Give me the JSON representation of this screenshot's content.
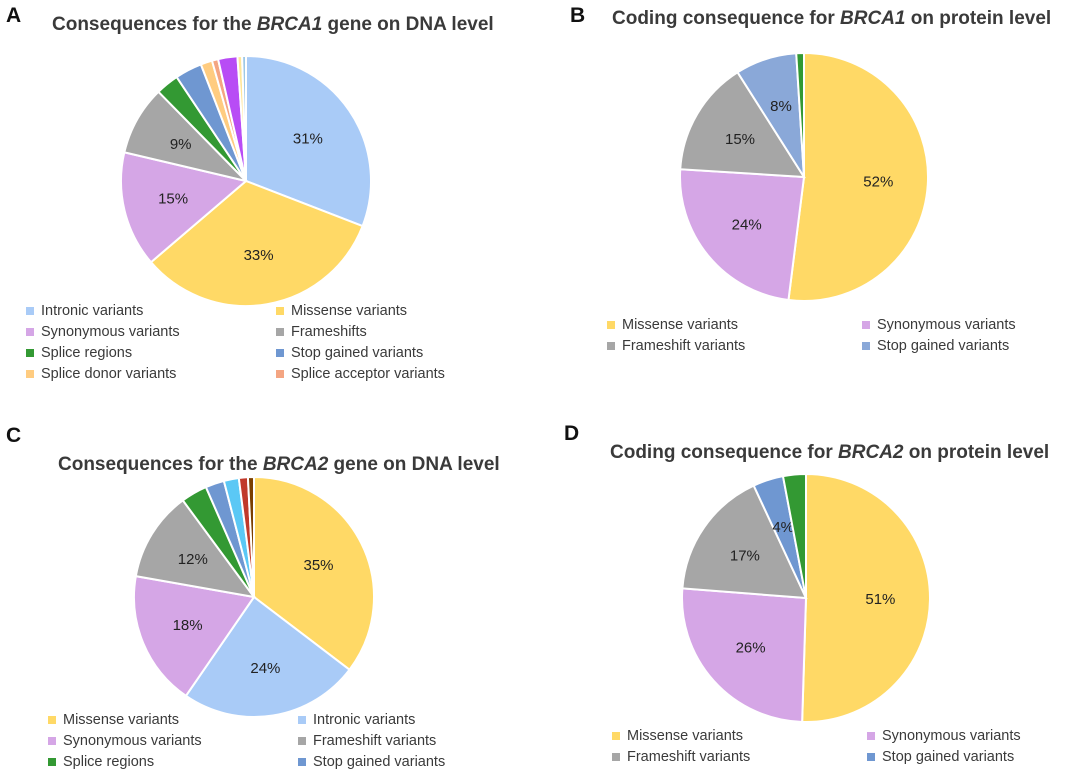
{
  "panels": [
    {
      "id": "a",
      "letter": "A",
      "title_before": "Consequences for the ",
      "title_gene": "BRCA1",
      "title_after": " gene on DNA level",
      "chart_data": {
        "type": "pie",
        "title": "Consequences for the BRCA1 gene on DNA level",
        "slices": [
          {
            "name": "Intronic variants",
            "value": 31,
            "label": "31%",
            "color": "#a9cbf7"
          },
          {
            "name": "Missense variants",
            "value": 33,
            "label": "33%",
            "color": "#ffd966"
          },
          {
            "name": "Synonymous variants",
            "value": 15,
            "label": "15%",
            "color": "#d5a6e6"
          },
          {
            "name": "Frameshifts",
            "value": 9,
            "label": "9%",
            "color": "#a6a6a6"
          },
          {
            "name": "Splice regions",
            "value": 3,
            "label": "",
            "color": "#339933"
          },
          {
            "name": "Stop gained variants",
            "value": 3.5,
            "label": "",
            "color": "#6f97d1"
          },
          {
            "name": "Splice donor variants",
            "value": 1.5,
            "label": "",
            "color": "#ffcc80"
          },
          {
            "name": "Splice acceptor variants",
            "value": 0.8,
            "label": "",
            "color": "#f4a582"
          },
          {
            "name": "",
            "value": 2.5,
            "label": "",
            "color": "#b84cf5"
          },
          {
            "name": "",
            "value": 0.6,
            "label": "",
            "color": "#ffe699"
          },
          {
            "name": "",
            "value": 0.5,
            "label": "",
            "color": "#9ec8e6"
          }
        ]
      },
      "legend": [
        {
          "label": "Intronic variants",
          "color": "#a9cbf7"
        },
        {
          "label": "Missense variants",
          "color": "#ffd966"
        },
        {
          "label": "Synonymous variants",
          "color": "#d5a6e6"
        },
        {
          "label": "Frameshifts",
          "color": "#a6a6a6"
        },
        {
          "label": "Splice regions",
          "color": "#339933"
        },
        {
          "label": "Stop gained variants",
          "color": "#6f97d1"
        },
        {
          "label": "Splice donor variants",
          "color": "#ffcc80"
        },
        {
          "label": "Splice acceptor variants",
          "color": "#f4a582"
        }
      ]
    },
    {
      "id": "b",
      "letter": "B",
      "title_before": "Coding consequence for ",
      "title_gene": "BRCA1",
      "title_after": " on protein level",
      "chart_data": {
        "type": "pie",
        "title": "Coding consequence for BRCA1 on protein level",
        "slices": [
          {
            "name": "Missense variants",
            "value": 52,
            "label": "52%",
            "color": "#ffd966"
          },
          {
            "name": "Synonymous variants",
            "value": 24,
            "label": "24%",
            "color": "#d5a6e6"
          },
          {
            "name": "Frameshift variants",
            "value": 15,
            "label": "15%",
            "color": "#a6a6a6"
          },
          {
            "name": "Stop gained variants",
            "value": 8,
            "label": "8%",
            "color": "#8aa8d8"
          },
          {
            "name": "",
            "value": 1,
            "label": "",
            "color": "#339933"
          }
        ]
      },
      "legend": [
        {
          "label": "Missense variants",
          "color": "#ffd966"
        },
        {
          "label": "Synonymous variants",
          "color": "#d5a6e6"
        },
        {
          "label": "Frameshift variants",
          "color": "#a6a6a6"
        },
        {
          "label": "Stop gained variants",
          "color": "#8aa8d8"
        }
      ]
    },
    {
      "id": "c",
      "letter": "C",
      "title_before": "Consequences for the ",
      "title_gene": "BRCA2",
      "title_after": " gene on DNA level",
      "chart_data": {
        "type": "pie",
        "title": "Consequences for the BRCA2 gene on DNA level",
        "slices": [
          {
            "name": "Missense variants",
            "value": 35,
            "label": "35%",
            "color": "#ffd966"
          },
          {
            "name": "Intronic variants",
            "value": 24,
            "label": "24%",
            "color": "#a9cbf7"
          },
          {
            "name": "Synonymous variants",
            "value": 18,
            "label": "18%",
            "color": "#d5a6e6"
          },
          {
            "name": "Frameshift variants",
            "value": 12,
            "label": "12%",
            "color": "#a6a6a6"
          },
          {
            "name": "Splice regions",
            "value": 3.5,
            "label": "",
            "color": "#339933"
          },
          {
            "name": "Stop gained variants",
            "value": 2.5,
            "label": "",
            "color": "#6f97d1"
          },
          {
            "name": "",
            "value": 2,
            "label": "",
            "color": "#5bc8f5"
          },
          {
            "name": "",
            "value": 1.2,
            "label": "",
            "color": "#c0392b"
          },
          {
            "name": "",
            "value": 0.8,
            "label": "",
            "color": "#7b3f00"
          }
        ]
      },
      "legend": [
        {
          "label": "Missense variants",
          "color": "#ffd966"
        },
        {
          "label": "Intronic variants",
          "color": "#a9cbf7"
        },
        {
          "label": "Synonymous variants",
          "color": "#d5a6e6"
        },
        {
          "label": "Frameshift variants",
          "color": "#a6a6a6"
        },
        {
          "label": "Splice regions",
          "color": "#339933"
        },
        {
          "label": "Stop gained variants",
          "color": "#6f97d1"
        }
      ]
    },
    {
      "id": "d",
      "letter": "D",
      "title_before": "Coding consequence for ",
      "title_gene": "BRCA2",
      "title_after": " on protein level",
      "chart_data": {
        "type": "pie",
        "title": "Coding consequence for BRCA2 on protein level",
        "slices": [
          {
            "name": "Missense variants",
            "value": 51,
            "label": "51%",
            "color": "#ffd966"
          },
          {
            "name": "Synonymous variants",
            "value": 26,
            "label": "26%",
            "color": "#d5a6e6"
          },
          {
            "name": "Frameshift variants",
            "value": 17,
            "label": "17%",
            "color": "#a6a6a6"
          },
          {
            "name": "Stop gained variants",
            "value": 4,
            "label": "4%",
            "color": "#6f97d1"
          },
          {
            "name": "",
            "value": 3,
            "label": "",
            "color": "#339933"
          }
        ]
      },
      "legend": [
        {
          "label": "Missense variants",
          "color": "#ffd966"
        },
        {
          "label": "Synonymous variants",
          "color": "#d5a6e6"
        },
        {
          "label": "Frameshift variants",
          "color": "#a6a6a6"
        },
        {
          "label": "Stop gained variants",
          "color": "#6f97d1"
        }
      ]
    }
  ]
}
